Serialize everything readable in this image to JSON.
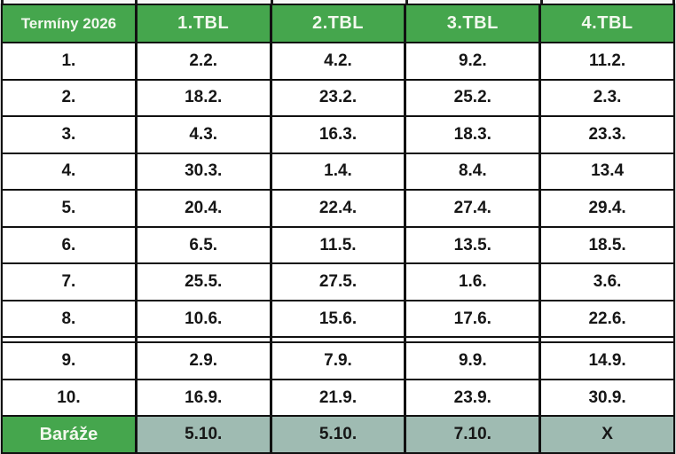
{
  "table": {
    "title": "Termíny 2026",
    "columns": [
      "1.TBL",
      "2.TBL",
      "3.TBL",
      "4.TBL"
    ],
    "rows": [
      {
        "label": "1.",
        "dates": [
          "2.2.",
          "4.2.",
          "9.2.",
          "11.2."
        ]
      },
      {
        "label": "2.",
        "dates": [
          "18.2.",
          "23.2.",
          "25.2.",
          "2.3."
        ]
      },
      {
        "label": "3.",
        "dates": [
          "4.3.",
          "16.3.",
          "18.3.",
          "23.3."
        ]
      },
      {
        "label": "4.",
        "dates": [
          "30.3.",
          "1.4.",
          "8.4.",
          "13.4"
        ]
      },
      {
        "label": "5.",
        "dates": [
          "20.4.",
          "22.4.",
          "27.4.",
          "29.4."
        ]
      },
      {
        "label": "6.",
        "dates": [
          "6.5.",
          "11.5.",
          "13.5.",
          "18.5."
        ]
      },
      {
        "label": "7.",
        "dates": [
          "25.5.",
          "27.5.",
          "1.6.",
          "3.6."
        ]
      },
      {
        "label": "8.",
        "dates": [
          "10.6.",
          "15.6.",
          "17.6.",
          "22.6."
        ]
      },
      {
        "label": "9.",
        "dates": [
          "2.9.",
          "7.9.",
          "9.9.",
          "14.9."
        ]
      },
      {
        "label": "10.",
        "dates": [
          "16.9.",
          "21.9.",
          "23.9.",
          "30.9."
        ]
      }
    ],
    "break_after_row_index": 8,
    "playoff": {
      "label": "Baráže",
      "dates": [
        "5.10.",
        "5.10.",
        "7.10.",
        "X"
      ]
    }
  },
  "colors": {
    "header_green": "#45a64d",
    "playoff_sage": "#9fbbb2",
    "header_text": "#f2f8ee",
    "border": "#111111",
    "body_text": "#161616"
  },
  "chart_data": {
    "type": "table",
    "title": "Termíny 2026",
    "columns": [
      "Termíny 2026",
      "1.TBL",
      "2.TBL",
      "3.TBL",
      "4.TBL"
    ],
    "rows": [
      [
        "1.",
        "2.2.",
        "4.2.",
        "9.2.",
        "11.2."
      ],
      [
        "2.",
        "18.2.",
        "23.2.",
        "25.2.",
        "2.3."
      ],
      [
        "3.",
        "4.3.",
        "16.3.",
        "18.3.",
        "23.3."
      ],
      [
        "4.",
        "30.3.",
        "1.4.",
        "8.4.",
        "13.4"
      ],
      [
        "5.",
        "20.4.",
        "22.4.",
        "27.4.",
        "29.4."
      ],
      [
        "6.",
        "6.5.",
        "11.5.",
        "13.5.",
        "18.5."
      ],
      [
        "7.",
        "25.5.",
        "27.5.",
        "1.6.",
        "3.6."
      ],
      [
        "8.",
        "10.6.",
        "15.6.",
        "17.6.",
        "22.6."
      ],
      [
        "9.",
        "2.9.",
        "7.9.",
        "9.9.",
        "14.9."
      ],
      [
        "10.",
        "16.9.",
        "21.9.",
        "23.9.",
        "30.9."
      ],
      [
        "Baráže",
        "5.10.",
        "5.10.",
        "7.10.",
        "X"
      ]
    ],
    "layout_hints": {
      "double_line_separator_after_data_row": 8,
      "grid": true,
      "header_fill": "#45a64d",
      "playoff_row_fill": "#9fbbb2"
    }
  }
}
